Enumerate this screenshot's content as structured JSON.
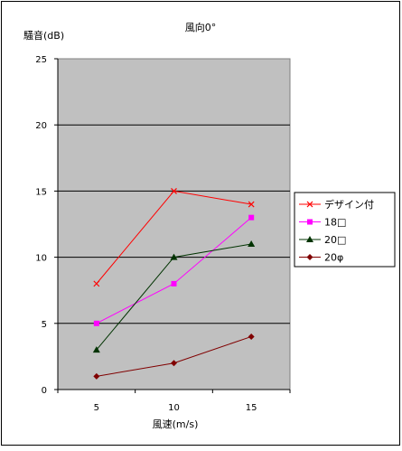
{
  "chart_data": {
    "type": "line",
    "title": "風向0°",
    "ylabel": "騒音(dB)",
    "xlabel": "風速(m/s)",
    "categories": [
      "5",
      "10",
      "15"
    ],
    "x": [
      5,
      10,
      15
    ],
    "ylim": [
      0,
      25
    ],
    "yticks": [
      0,
      5,
      10,
      15,
      20,
      25
    ],
    "grid": true,
    "legend_position": "right",
    "plot_background": "#c0c0c0",
    "series": [
      {
        "name": "デザイン付",
        "values": [
          8,
          15,
          14
        ],
        "color": "#ff0000",
        "marker": "x-icon"
      },
      {
        "name": "18□",
        "values": [
          5,
          8,
          13
        ],
        "color": "#ff00ff",
        "marker": "square-icon"
      },
      {
        "name": "20□",
        "values": [
          3,
          10,
          11
        ],
        "color": "#003300",
        "marker": "triangle-icon"
      },
      {
        "name": "20φ",
        "values": [
          1,
          2,
          4
        ],
        "color": "#800000",
        "marker": "diamond-icon"
      }
    ]
  }
}
